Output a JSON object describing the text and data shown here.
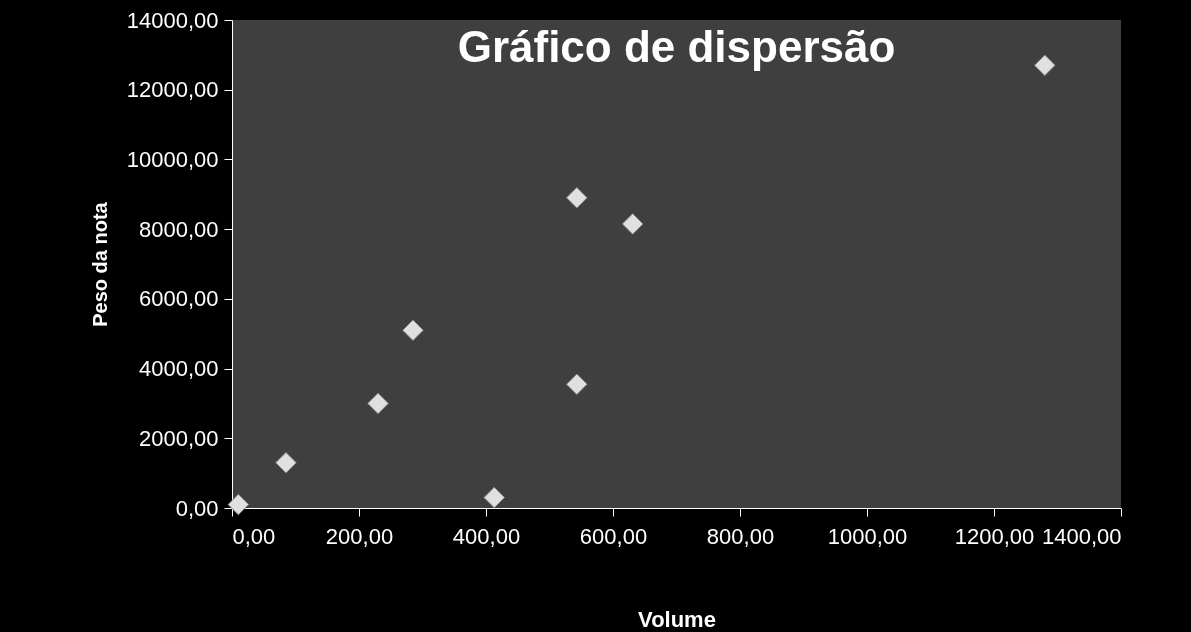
{
  "chart_data": {
    "type": "scatter",
    "title": "Gráfico de dispersão",
    "xlabel": "Volume",
    "ylabel": "Peso da nota",
    "x": [
      10,
      85,
      230,
      285,
      413,
      543,
      543,
      631,
      1280
    ],
    "values": [
      100,
      1300,
      3000,
      5100,
      300,
      3550,
      8900,
      8150,
      12700
    ],
    "color": "#e0e0e0",
    "marker": "diamond",
    "xlim": [
      0,
      1400
    ],
    "ylim": [
      0,
      14000
    ],
    "xticks": [
      {
        "value": 0,
        "label": "0,00"
      },
      {
        "value": 200,
        "label": "200,00"
      },
      {
        "value": 400,
        "label": "400,00"
      },
      {
        "value": 600,
        "label": "600,00"
      },
      {
        "value": 800,
        "label": "800,00"
      },
      {
        "value": 1000,
        "label": "1000,00"
      },
      {
        "value": 1200,
        "label": "1200,00"
      },
      {
        "value": 1400,
        "label": "1400,00"
      }
    ],
    "yticks": [
      {
        "value": 0,
        "label": "0,00"
      },
      {
        "value": 2000,
        "label": "2000,00"
      },
      {
        "value": 4000,
        "label": "4000,00"
      },
      {
        "value": 6000,
        "label": "6000,00"
      },
      {
        "value": 8000,
        "label": "8000,00"
      },
      {
        "value": 10000,
        "label": "10000,00"
      },
      {
        "value": 12000,
        "label": "12000,00"
      },
      {
        "value": 14000,
        "label": "14000,00"
      }
    ]
  }
}
